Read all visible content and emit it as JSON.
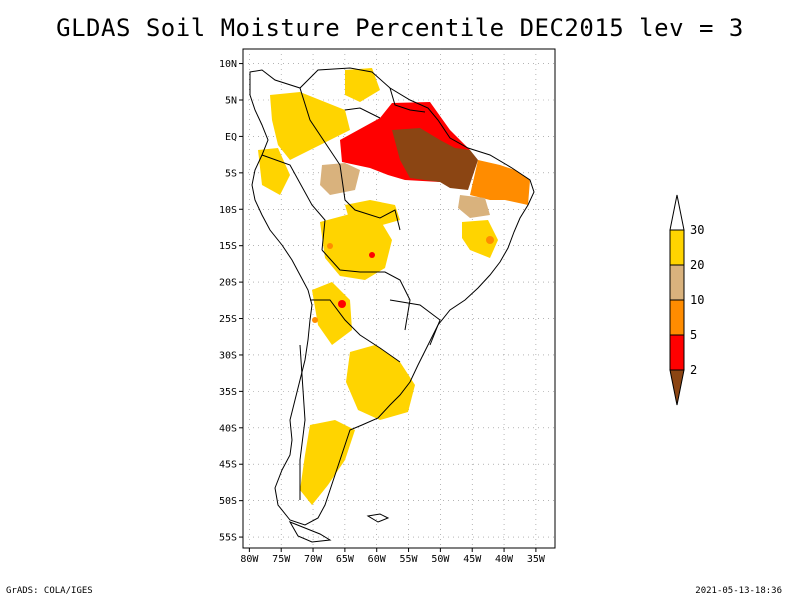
{
  "title": "GLDAS Soil Moisture Percentile DEC2015 lev = 3",
  "footer": {
    "left": "GrADS: COLA/IGES",
    "right": "2021-05-13-18:36"
  },
  "axes": {
    "lat_labels": [
      "10N",
      "5N",
      "EQ",
      "5S",
      "10S",
      "15S",
      "20S",
      "25S",
      "30S",
      "35S",
      "40S",
      "45S",
      "50S",
      "55S"
    ],
    "lon_labels": [
      "80W",
      "75W",
      "70W",
      "65W",
      "60W",
      "55W",
      "50W",
      "45W",
      "40W",
      "35W"
    ],
    "lat_values": [
      10,
      5,
      0,
      -5,
      -10,
      -15,
      -20,
      -25,
      -30,
      -35,
      -40,
      -45,
      -50,
      -55
    ],
    "lon_values": [
      -80,
      -75,
      -70,
      -65,
      -60,
      -55,
      -50,
      -45,
      -40,
      -35
    ]
  },
  "legend": {
    "labels": [
      "30",
      "20",
      "10",
      "5",
      "2"
    ],
    "colors": {
      "above30": "#ffffff",
      "c20_30": "#ffd400",
      "c10_20": "#d9b27d",
      "c5_10": "#ff8c00",
      "c2_5": "#ff0000",
      "below2": "#8b4513"
    }
  }
}
